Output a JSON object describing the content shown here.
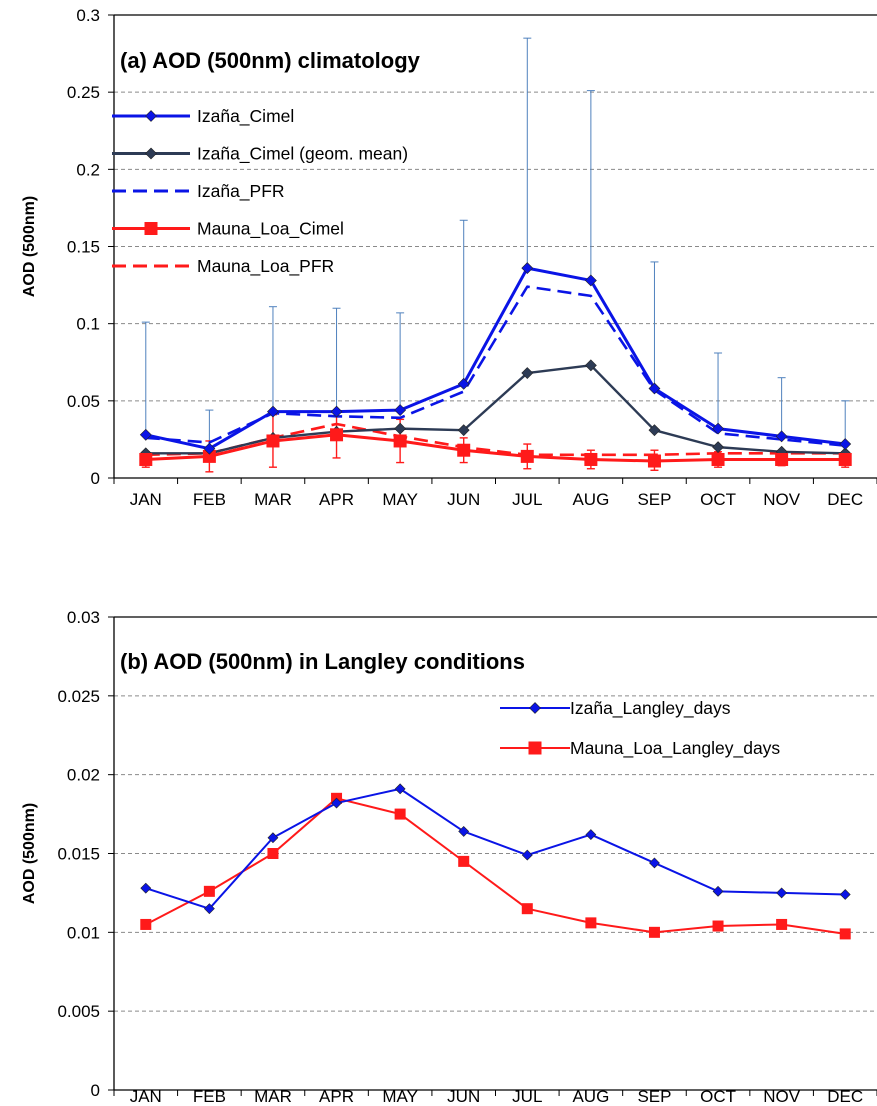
{
  "chart_data": [
    {
      "type": "line",
      "title": "(a) AOD (500nm) climatology",
      "xlabel": "",
      "ylabel": "AOD (500nm)",
      "categories": [
        "JAN",
        "FEB",
        "MAR",
        "APR",
        "MAY",
        "JUN",
        "JUL",
        "AUG",
        "SEP",
        "OCT",
        "NOV",
        "DEC"
      ],
      "ylim": [
        0,
        0.3
      ],
      "yticks": [
        "0",
        "0.05",
        "0.1",
        "0.15",
        "0.2",
        "0.25",
        "0.3"
      ],
      "grid": true,
      "legend_position": "top-left",
      "series": [
        {
          "name": "Izaña_Cimel",
          "color": "#0a14e6",
          "style": "solid",
          "marker": "diamond",
          "values": [
            0.028,
            0.019,
            0.043,
            0.043,
            0.044,
            0.061,
            0.136,
            0.128,
            0.058,
            0.032,
            0.027,
            0.022
          ],
          "error_upper": [
            0.101,
            0.044,
            0.111,
            0.11,
            0.107,
            0.167,
            0.285,
            0.251,
            0.14,
            0.081,
            0.065,
            0.05
          ]
        },
        {
          "name": "Izaña_Cimel (geom. mean)",
          "color": "#2d3b55",
          "style": "solid",
          "marker": "diamond",
          "values": [
            0.016,
            0.016,
            0.026,
            0.03,
            0.032,
            0.031,
            0.068,
            0.073,
            0.031,
            0.02,
            0.017,
            0.016
          ]
        },
        {
          "name": "Izaña_PFR",
          "color": "#0a14e6",
          "style": "dashed",
          "marker": "none",
          "values": [
            0.026,
            0.023,
            0.042,
            0.04,
            0.039,
            0.056,
            0.124,
            0.118,
            0.057,
            0.029,
            0.025,
            0.021
          ]
        },
        {
          "name": "Mauna_Loa_Cimel",
          "color": "#ff1a1a",
          "style": "solid",
          "marker": "square",
          "values": [
            0.012,
            0.014,
            0.024,
            0.028,
            0.024,
            0.018,
            0.014,
            0.012,
            0.011,
            0.012,
            0.012,
            0.012
          ],
          "error_upper": [
            0.017,
            0.024,
            0.041,
            0.043,
            0.038,
            0.026,
            0.022,
            0.018,
            0.018,
            0.017,
            0.016,
            0.017
          ],
          "error_lower": [
            0.007,
            0.004,
            0.007,
            0.013,
            0.01,
            0.01,
            0.006,
            0.006,
            0.005,
            0.007,
            0.008,
            0.007
          ]
        },
        {
          "name": "Mauna_Loa_PFR",
          "color": "#ff1a1a",
          "style": "dashed",
          "marker": "none",
          "values": [
            0.015,
            0.016,
            0.026,
            0.035,
            0.027,
            0.02,
            0.015,
            0.015,
            0.015,
            0.016,
            0.016,
            0.016
          ]
        }
      ]
    },
    {
      "type": "line",
      "title": "(b) AOD (500nm) in Langley conditions",
      "xlabel": "",
      "ylabel": "AOD (500nm)",
      "categories": [
        "JAN",
        "FEB",
        "MAR",
        "APR",
        "MAY",
        "JUN",
        "JUL",
        "AUG",
        "SEP",
        "OCT",
        "NOV",
        "DEC"
      ],
      "ylim": [
        0,
        0.03
      ],
      "yticks": [
        "0",
        "0.005",
        "0.01",
        "0.015",
        "0.02",
        "0.025",
        "0.03"
      ],
      "grid": true,
      "legend_position": "top-right",
      "series": [
        {
          "name": "Izaña_Langley_days",
          "color": "#0a14e6",
          "style": "solid",
          "marker": "diamond",
          "values": [
            0.0128,
            0.0115,
            0.016,
            0.0182,
            0.0191,
            0.0164,
            0.0149,
            0.0162,
            0.0144,
            0.0126,
            0.0125,
            0.0124
          ]
        },
        {
          "name": "Mauna_Loa_Langley_days",
          "color": "#ff1a1a",
          "style": "solid",
          "marker": "square",
          "values": [
            0.0105,
            0.0126,
            0.015,
            0.0185,
            0.0175,
            0.0145,
            0.0115,
            0.0106,
            0.01,
            0.0104,
            0.0105,
            0.0099
          ]
        }
      ]
    }
  ]
}
